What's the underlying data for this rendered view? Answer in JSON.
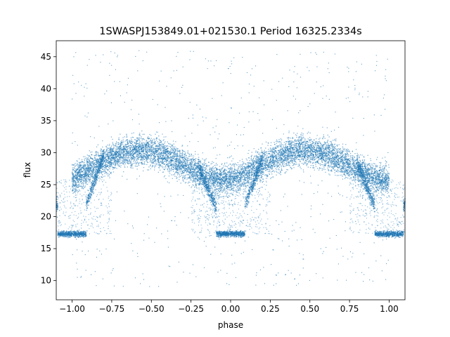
{
  "chart_data": {
    "type": "scatter",
    "title": "1SWASPJ153849.01+021530.1 Period 16325.2334s",
    "xlabel": "phase",
    "ylabel": "flux",
    "xlim": [
      -1.1,
      1.1
    ],
    "ylim": [
      7.0,
      47.5
    ],
    "x_ticks": [
      -1.0,
      -0.75,
      -0.5,
      -0.25,
      0.0,
      0.25,
      0.5,
      0.75,
      1.0
    ],
    "x_tick_labels": [
      "−1.00",
      "−0.75",
      "−0.50",
      "−0.25",
      "0.00",
      "0.25",
      "0.50",
      "0.75",
      "1.00"
    ],
    "y_ticks": [
      10,
      15,
      20,
      25,
      30,
      35,
      40,
      45
    ],
    "y_tick_labels": [
      "10",
      "15",
      "20",
      "25",
      "30",
      "35",
      "40",
      "45"
    ],
    "grid": false,
    "legend": false,
    "marker_color": "#1f77b4",
    "series": [
      {
        "x": [
          -1.0,
          -0.95,
          -0.9,
          -0.85,
          -0.8,
          -0.75,
          -0.7,
          -0.65,
          -0.6,
          -0.55,
          -0.5,
          -0.45,
          -0.4,
          -0.35,
          -0.3,
          -0.25,
          -0.2,
          -0.15,
          -0.1,
          -0.05,
          0.0,
          0.05,
          0.1,
          0.15,
          0.2,
          0.25,
          0.3,
          0.35,
          0.4,
          0.45,
          0.5,
          0.55,
          0.6,
          0.65,
          0.7,
          0.75,
          0.8,
          0.85,
          0.9,
          0.95,
          1.0
        ],
        "y_main": [
          26.0,
          26.6,
          27.3,
          28.0,
          28.7,
          29.3,
          29.8,
          30.1,
          30.3,
          30.4,
          30.2,
          29.9,
          29.4,
          28.8,
          28.1,
          27.5,
          26.8,
          26.3,
          25.9,
          25.7,
          25.8,
          26.2,
          26.8,
          27.5,
          28.2,
          28.8,
          29.4,
          29.9,
          30.2,
          30.4,
          30.3,
          30.1,
          29.8,
          29.3,
          28.7,
          28.1,
          27.4,
          26.8,
          26.2,
          25.9,
          25.8
        ],
        "y_eclipse_floor": 17.3,
        "eclipse_phases": [
          -1.0,
          0.0,
          1.0
        ],
        "scatter_range": [
          9.0,
          46.0
        ]
      }
    ]
  }
}
